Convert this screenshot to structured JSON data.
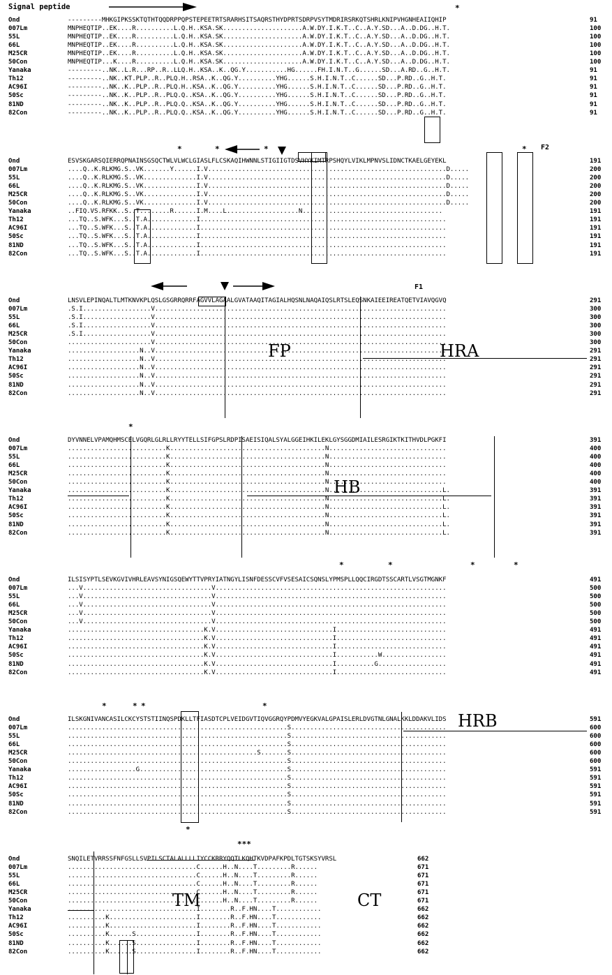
{
  "signal_peptide_label": "Signal peptide",
  "names": [
    "Ond",
    "007Lm",
    "55L",
    "66L",
    "M25CR",
    "50Con",
    "Yanaka",
    "Th12",
    "AC96I",
    "50Sc",
    "81ND",
    "82Con"
  ],
  "blocks": [
    {
      "numbers": [
        "91",
        "100",
        "100",
        "100",
        "100",
        "100",
        "91",
        "91",
        "91",
        "91",
        "91",
        "91"
      ],
      "rows": [
        "---------MHKGIPKSSKTQTHTQQDRPPQPSTEPEETRTSRARHSITSAQRSTHYDPRTSDRPVSYTMDRIRSRKQTSHRLKNIPVHGNHEAIIQHIP",
        "MNPHEQTIP..EK....R..........L.Q.H..KSA.SK.....................A.W.DY.I.K.T..C..A.Y.SD...A..D.DG..H.T.",
        "MNPHEQTIP..EK....R..........L.Q.H..KSA.SK.....................A.W.DY.I.K.T..C..A.Y.SD...A..D.DG..H.T.",
        "MNPHEQTIP..EK....R..........L.Q.H..KSA.SK.....................A.W.DY.I.K.T..C..A.Y.SD...A..D.DG..H.T.",
        "MNPHEQTIP..EK....R..........L.Q.H..KSA.SK.....................A.W.DY.I.K.T..C..A.Y.SD...A..D.DG..H.T.",
        "MNPHEQTIP...K....R..........L.Q.H..KSA.SK.....................A.W.DY.I.K.T..C..A.Y.SD...A..D.DG..H.T.",
        "---------..NK..L.R...RP..R..LLQ.H..KSA..K..QG.Y...........HG......FH.I.N.T..G......SD...A.RD..G..H.T.",
        "---------..NK..KT.PLP..R..PLQ.H..RSA..K..QG.Y..........YHG......S.H.I.N.T..C......SD...P.RD..G..H.T.",
        "---------..NK..K..PLP..R..PLQ.H..KSA..K..QG.Y..........YHG......S.H.I.N.T..C......SD...P.RD..G..H.T.",
        "---------..NK..K..PLP..R..PLQ.Q..KSA..K..QG.Y..........YHG......S.H.I.N.T..C......SD...P.RD..G..H.T.",
        "---------..NK..K..PLP..R..PLQ.Q..KSA..K..QG.Y..........YHG......S.H.I.N.T..C......SD...P.RD..G..H.T.",
        "---------..NK..K..PLP..R..PLQ.Q..KSA..K..QG.Y..........YHG......S.H.I.N.T..C......SD...P.RD..G..H.T."
      ]
    },
    {
      "numbers": [
        "191",
        "200",
        "200",
        "200",
        "200",
        "200",
        "191",
        "191",
        "191",
        "191",
        "191",
        "191"
      ],
      "rows": [
        "ESVSKGARSQIERRQPNAINSGSQCTWLVLWCLGIASLFLCSKAQIHWNNLSTIGIIGTDSVHYKIMTRPSHQYLVIKLMPNVSLIDNCTKAELGEYEKL",
        "....Q..K.RLKMG.S..VK.......Y......I.V...............................................................D.....",
        "....Q..K.RLKMG.S..VK..............I.V...............................................................D.....",
        "....Q..K.RLKMG.S..VK..............I.V...............................................................D.....",
        "....Q..K.RLKMG.S..VK..............I.V...............................................................D.....",
        "....Q..K.RLKMG.S..VK..............I.V...............................................................D.....",
        "..FIQ.VS.RFKK..S..T........R......I.M....L...................N.....................................",
        "...TQ..S.WFK...S..T.A.............I.................................................................",
        "...TQ..S.WFK...S..T.A.............I.................................................................",
        "...TQ..S.WFK...S..T.A.............I.................................................................",
        "...TQ..S.WFK...S..T.A.............I.................................................................",
        "...TQ..S.WFK...S..T.A.............I................................................................."
      ]
    },
    {
      "numbers": [
        "291",
        "300",
        "300",
        "300",
        "300",
        "300",
        "291",
        "291",
        "291",
        "291",
        "291",
        "291"
      ],
      "rows": [
        "LNSVLEPINQALTLMTKNVKPLQSLGSGRRQRRFAGVVLAGAALGVATAAQITAGIALHQSNLNAQAIQSLRTSLEQSNKAIEEIREATQETVIAVQGVQ",
        ".S.I..................V.............................................................................",
        ".S.I..................V.............................................................................",
        ".S.I..................V.............................................................................",
        ".S.I..................V.............................................................................",
        "......................V.............................................................................",
        "...................N..V.............................................................................",
        "...................N..V.............................................................................",
        "...................N..V.............................................................................",
        "...................N..V.............................................................................",
        "...................N..V.............................................................................",
        "...................N..V............................................................................."
      ]
    },
    {
      "numbers": [
        "391",
        "400",
        "400",
        "400",
        "400",
        "400",
        "391",
        "391",
        "391",
        "391",
        "391",
        "391"
      ],
      "rows": [
        "DYVNNELVPAMQHMSCELVGQRLGLRLLRYYTELLSIFGPSLRDPISAEISIQALSYALGGEIHKILEKLGYSGGDMIAILESRGIKTKITHVDLPGKFI",
        "..........................K.........................................N...............................",
        "..........................K.........................................N...............................",
        "..........................K.........................................N...............................",
        "..........................K.........................................N...............................",
        "..........................K.........................................N...............................",
        "..........................K.........................................N..............................L.",
        "..........................K.........................................N..............................L.",
        "..........................K.........................................N..............................L.",
        "..........................K.........................................N..............................L.",
        "..........................K.........................................N..............................L.",
        "..........................K.........................................N..............................L."
      ]
    },
    {
      "numbers": [
        "491",
        "500",
        "500",
        "500",
        "500",
        "500",
        "491",
        "491",
        "491",
        "491",
        "491",
        "491"
      ],
      "rows": [
        "ILSISYPTLSEVKGVIVHRLEAVSYNIGSQEWYTTVPRYIATNGYLISNFDESSCVFVSESAICSQNSLYPMSPLLQQCIRGDTSSCARTLVSGTMGNKF",
        "...V..................................V.............................................................",
        "...V..................................V.............................................................",
        "...V..................................V.............................................................",
        "...V..................................V.............................................................",
        "...V..................................V.............................................................",
        "....................................K.V...............................I.............................",
        "....................................K.V...............................I.............................",
        "....................................K.V...............................I.............................",
        "....................................K.V...............................I...........W.................",
        "....................................K.V...............................I..........G..................",
        "....................................K.V...............................I............................."
      ]
    },
    {
      "numbers": [
        "591",
        "600",
        "600",
        "600",
        "600",
        "600",
        "591",
        "591",
        "591",
        "591",
        "591",
        "591"
      ],
      "rows": [
        "ILSKGNIVANCASILCKCYSTSTIINQSPDKLLTFIASDTCPLVEIDGVTIQVGGRQYPDMVYEGKVALGPAISLERLDVGTNLGNALKKLDDAKVLIDS",
        "..........................................................S.........................................",
        "..........................................................S.........................................",
        "..........................................................S.........................................",
        "..................................................S.......S.........................................",
        "..........................................................S.........................................",
        "..................G.......................................S.........................................",
        "..........................................................S.........................................",
        "..........................................................S.........................................",
        "..........................................................S.........................................",
        "..........................................................S.........................................",
        "..........................................................S........................................."
      ]
    },
    {
      "numbers": [
        "662",
        "671",
        "671",
        "671",
        "671",
        "671",
        "662",
        "662",
        "662",
        "662",
        "662",
        "662"
      ],
      "rows": [
        "SNQILETVRRSSFNFGSLLSVPILSCTALALLLLIYCCKRRYQQTLKQHTKVDPAFKPDLTGTSKSYVRSL",
        "..................................C......H..N....T.........R......",
        "..................................C......H..N....T.........R......",
        "..................................C......H..N....T.........R......",
        "..................................C......H..N....T.........R......",
        "..................................C......H..N....T.........R......",
        "..................................I........R..F.HN....T............",
        "..........K.......................I........R..F.HN....T............",
        "..........K.......................I........R..F.HN....T............",
        "..........K......S................I........R..F.HN....T............",
        "..........K......S................I........R..F.HN....T............",
        "..........K......S................I........R..F.HN....T............"
      ]
    }
  ],
  "markers": {
    "star": "*",
    "triple_star": "***"
  },
  "region_labels": {
    "fp": "FP",
    "hra": "HRA",
    "hb": "HB",
    "hrb": "HRB",
    "tm": "TM",
    "ct": "CT",
    "f1": "F1",
    "f2": "F2"
  }
}
